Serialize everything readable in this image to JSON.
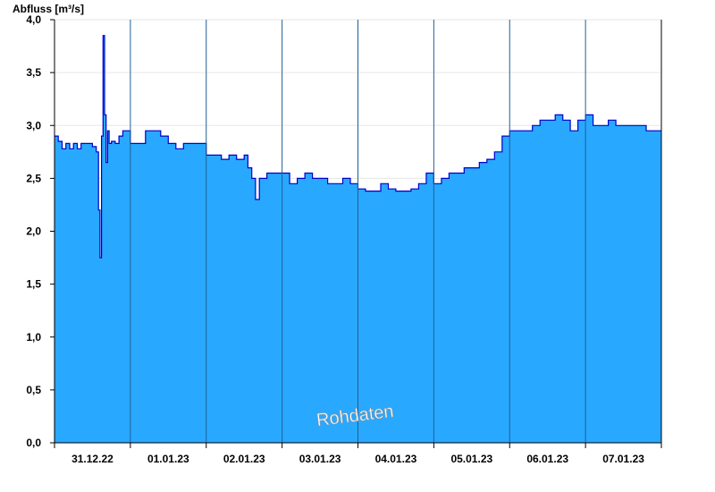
{
  "chart_data": {
    "type": "area",
    "ylabel": "Abfluss [m³/s]",
    "ylim": [
      0,
      4.0
    ],
    "yticks": [
      0,
      0.5,
      1.0,
      1.5,
      2.0,
      2.5,
      3.0,
      3.5,
      4.0
    ],
    "ytick_labels": [
      "0,0",
      "0,5",
      "1,0",
      "1,5",
      "2,0",
      "2,5",
      "3,0",
      "3,5",
      "4,0"
    ],
    "xlim": [
      0,
      8
    ],
    "x_unit": "days since start of 31.12.22",
    "x_tick_labels": [
      "31.12.22",
      "01.01.23",
      "02.01.23",
      "03.01.23",
      "04.01.23",
      "05.01.23",
      "06.01.23",
      "07.01.23"
    ],
    "day_boundaries": [
      1,
      2,
      3,
      4,
      5,
      6,
      7
    ],
    "watermark": "Rohdaten",
    "grid": "horizontal",
    "colors": {
      "fill": "#29a8ff",
      "line": "#0000cc",
      "grid": "#e6e6e6",
      "separator": "#1f5f96"
    },
    "series": [
      {
        "x": [
          0.0,
          0.05,
          0.1,
          0.15,
          0.2,
          0.25,
          0.3,
          0.35,
          0.4,
          0.45,
          0.5,
          0.55,
          0.58,
          0.6,
          0.62,
          0.64,
          0.66,
          0.68,
          0.7,
          0.72,
          0.75,
          0.8,
          0.85,
          0.9,
          1.0,
          1.1,
          1.2,
          1.3,
          1.4,
          1.5,
          1.6,
          1.7,
          1.8,
          1.9,
          2.0,
          2.1,
          2.2,
          2.3,
          2.4,
          2.5,
          2.55,
          2.6,
          2.65,
          2.7,
          2.8,
          2.9,
          3.0,
          3.1,
          3.2,
          3.3,
          3.4,
          3.5,
          3.6,
          3.7,
          3.8,
          3.9,
          4.0,
          4.1,
          4.2,
          4.3,
          4.4,
          4.5,
          4.6,
          4.7,
          4.8,
          4.9,
          5.0,
          5.1,
          5.2,
          5.3,
          5.4,
          5.5,
          5.6,
          5.7,
          5.8,
          5.9,
          6.0,
          6.1,
          6.2,
          6.3,
          6.4,
          6.5,
          6.6,
          6.7,
          6.8,
          6.9,
          7.0,
          7.1,
          7.2,
          7.3,
          7.4,
          7.5,
          7.6,
          7.7,
          7.8,
          7.9,
          8.0
        ],
        "y": [
          2.9,
          2.85,
          2.78,
          2.83,
          2.78,
          2.83,
          2.78,
          2.83,
          2.83,
          2.83,
          2.8,
          2.75,
          2.2,
          1.75,
          2.9,
          3.85,
          3.1,
          2.65,
          2.95,
          2.83,
          2.85,
          2.83,
          2.9,
          2.95,
          2.83,
          2.83,
          2.95,
          2.95,
          2.9,
          2.83,
          2.78,
          2.83,
          2.83,
          2.83,
          2.72,
          2.72,
          2.68,
          2.72,
          2.68,
          2.72,
          2.6,
          2.5,
          2.3,
          2.5,
          2.55,
          2.55,
          2.55,
          2.45,
          2.5,
          2.55,
          2.5,
          2.5,
          2.45,
          2.45,
          2.5,
          2.45,
          2.4,
          2.38,
          2.38,
          2.45,
          2.4,
          2.38,
          2.38,
          2.4,
          2.45,
          2.55,
          2.45,
          2.5,
          2.55,
          2.55,
          2.6,
          2.6,
          2.65,
          2.68,
          2.75,
          2.9,
          2.95,
          2.95,
          2.95,
          3.0,
          3.05,
          3.05,
          3.1,
          3.05,
          2.95,
          3.05,
          3.1,
          3.0,
          3.0,
          3.05,
          3.0,
          3.0,
          3.0,
          3.0,
          2.95,
          2.95,
          2.95
        ]
      }
    ]
  }
}
